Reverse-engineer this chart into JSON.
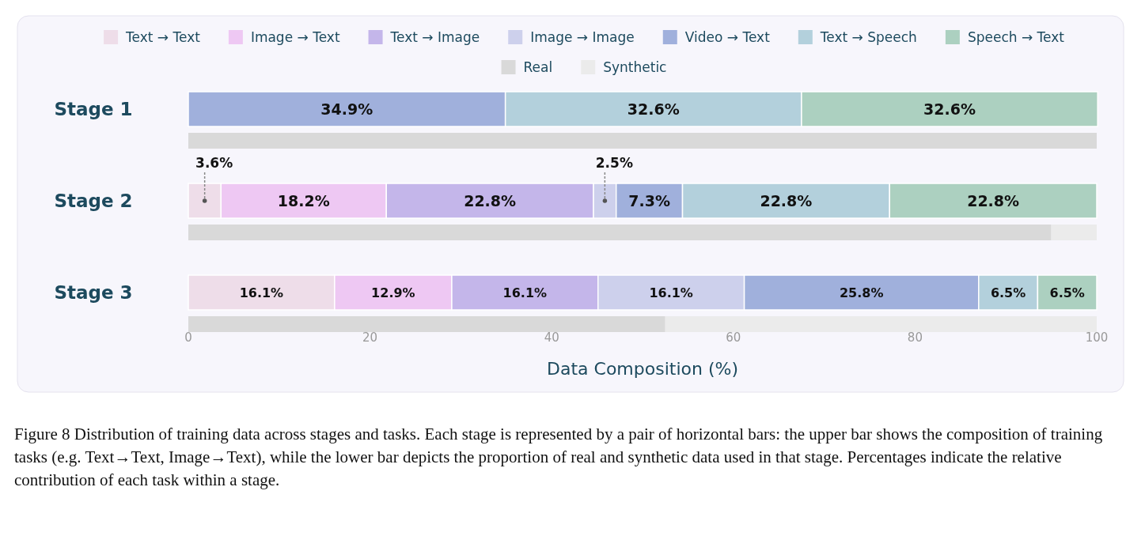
{
  "chart_data": {
    "type": "bar",
    "orientation": "horizontal",
    "stacked": true,
    "legend": "top",
    "categories": [
      "Stage 1",
      null,
      "Stage 2",
      null,
      "Stage 3",
      null
    ],
    "series": [
      {
        "name": "Text → Text",
        "color": "#eedde9",
        "values": [
          null,
          null,
          3.6,
          null,
          16.1,
          null
        ],
        "value_labels": [
          null,
          null,
          "3.6%",
          null,
          "16.1%",
          null
        ]
      },
      {
        "name": "Image → Text",
        "color": "#eec8f3",
        "values": [
          null,
          null,
          18.2,
          null,
          12.9,
          null
        ],
        "value_labels": [
          null,
          null,
          "18.2%",
          null,
          "12.9%",
          null
        ]
      },
      {
        "name": "Text → Image",
        "color": "#c4b6ea",
        "values": [
          null,
          null,
          22.8,
          null,
          16.1,
          null
        ],
        "value_labels": [
          null,
          null,
          "22.8%",
          null,
          "16.1%",
          null
        ]
      },
      {
        "name": "Image → Image",
        "color": "#cdd0ec",
        "values": [
          null,
          null,
          2.5,
          null,
          16.1,
          null
        ],
        "value_labels": [
          null,
          null,
          "2.5%",
          null,
          "16.1%",
          null
        ]
      },
      {
        "name": "Video → Text",
        "color": "#a0b0dc",
        "values": [
          34.9,
          null,
          7.3,
          null,
          25.8,
          null
        ],
        "value_labels": [
          "34.9%",
          null,
          "7.3%",
          null,
          "25.8%",
          null
        ]
      },
      {
        "name": "Text → Speech",
        "color": "#b3d0dc",
        "values": [
          32.6,
          null,
          22.8,
          null,
          6.5,
          null
        ],
        "value_labels": [
          "32.6%",
          null,
          "22.8%",
          null,
          "6.5%",
          null
        ]
      },
      {
        "name": "Speech → Text",
        "color": "#acd0c0",
        "values": [
          32.6,
          null,
          22.8,
          null,
          6.5,
          null
        ],
        "value_labels": [
          "32.6%",
          null,
          "22.8%",
          null,
          "6.5%",
          null
        ]
      },
      {
        "name": "Real",
        "color": "#d9d9d9",
        "values": [
          null,
          100,
          null,
          95,
          null,
          52.5
        ]
      },
      {
        "name": "Synthetic",
        "color": "#ebebeb",
        "values": [
          null,
          0,
          null,
          5,
          null,
          47.5
        ]
      }
    ],
    "xlim": [
      0,
      100
    ],
    "xticks": [
      0,
      20,
      40,
      60,
      80,
      100
    ],
    "xlabel": "Data Composition (%)",
    "annotations": [
      "Figure 8 Distribution of training data across stages and tasks. Each stage is represented by a pair of horizontal bars: the upper bar shows the composition of training tasks (e.g. Text→Text, Image→Text), while the lower bar depicts the proportion of real and synthetic data used in that stage. Percentages indicate the relative contribution of each task within a stage."
    ]
  }
}
